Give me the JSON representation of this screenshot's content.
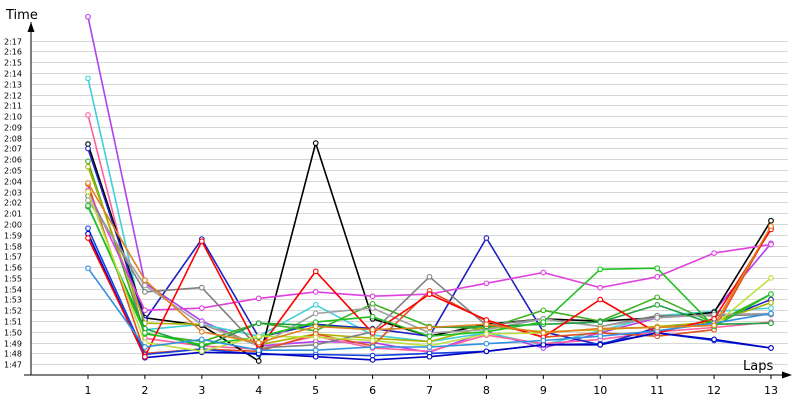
{
  "chart_data": {
    "type": "line",
    "xlabel": "Laps",
    "ylabel": "Time",
    "x": [
      1,
      2,
      3,
      4,
      5,
      6,
      7,
      8,
      9,
      10,
      11,
      12,
      13
    ],
    "ylim": [
      "1:46",
      "2:19"
    ],
    "yticks": [
      "1:47",
      "1:48",
      "1:49",
      "1:50",
      "1:51",
      "1:52",
      "1:53",
      "1:54",
      "1:55",
      "1:56",
      "1:57",
      "1:58",
      "1:59",
      "2:00",
      "2:01",
      "2:02",
      "2:03",
      "2:04",
      "2:05",
      "2:06",
      "2:07",
      "2:08",
      "2:09",
      "2:10",
      "2:11",
      "2:12",
      "2:13",
      "2:14",
      "2:15",
      "2:16",
      "2:17"
    ],
    "grid": true,
    "legend": "none",
    "series": [
      {
        "color": "#b040f0",
        "values": [
          "2:19.2",
          "1:54.5",
          "1:51.0",
          "1:48.7",
          "1:49.1",
          "1:49.0",
          "1:48.1",
          "1:50.0",
          "1:48.5",
          "1:49.9",
          "1:51.3",
          "1:51.9",
          "1:58.2"
        ]
      },
      {
        "color": "#40d0d8",
        "values": [
          "2:13.5",
          "1:50.2",
          "1:50.7",
          "1:49.6",
          "1:52.5",
          "1:49.7",
          "1:49.1",
          "1:49.9",
          "1:48.8",
          "1:50.1",
          "1:51.5",
          "1:51.9",
          "1:52.2"
        ]
      },
      {
        "color": "#ff60a0",
        "values": [
          "2:10.1",
          "1:49.4",
          "1:48.7",
          "1:48.4",
          "1:49.6",
          "1:48.5",
          "1:48.2",
          "1:49.7",
          "1:48.9",
          "1:49.3",
          "1:50.0",
          "1:50.4",
          "1:50.9"
        ]
      },
      {
        "color": "#000000",
        "values": [
          "2:07.4",
          "1:51.3",
          "1:50.6",
          "1:47.3",
          "2:07.5",
          "1:51.2",
          "1:49.6",
          "1:50.7",
          "1:51.2",
          "1:51.0",
          "1:51.3",
          "1:51.8",
          "2:00.3"
        ]
      },
      {
        "color": "#2020c0",
        "values": [
          "2:07.0",
          "1:51.1",
          "1:58.6",
          "1:49.5",
          "1:50.7",
          "1:50.3",
          "1:49.6",
          "1:58.7",
          "1:50.0",
          "1:48.8",
          "1:50.4",
          "1:50.9",
          "1:53.0"
        ]
      },
      {
        "color": "#40b020",
        "values": [
          "2:05.8",
          "1:49.8",
          "1:49.1",
          "1:50.8",
          "1:50.1",
          "1:52.6",
          "1:50.5",
          "1:50.3",
          "1:52.0",
          "1:51.0",
          "1:53.2",
          "1:50.8",
          "1:53.5"
        ]
      },
      {
        "color": "#b0b000",
        "values": [
          "2:05.3",
          "1:50.8",
          "1:50.7",
          "1:48.8",
          "1:49.8",
          "1:49.4",
          "1:49.1",
          "1:50.5",
          "1:50.0",
          "1:50.2",
          "1:50.5",
          "1:50.9",
          "1:52.7"
        ]
      },
      {
        "color": "#e05020",
        "values": [
          "2:03.7",
          "1:48.0",
          "1:48.4",
          "1:48.2",
          "1:49.8",
          "1:48.7",
          "1:53.8",
          "1:51.0",
          "1:49.5",
          "1:49.9",
          "1:49.6",
          "1:50.2",
          "1:59.7"
        ]
      },
      {
        "color": "#e040e0",
        "values": [
          "2:03.1",
          "1:52.0",
          "1:52.2",
          "1:53.1",
          "1:53.7",
          "1:53.3",
          "1:53.5",
          "1:54.5",
          "1:55.5",
          "1:54.1",
          "1:55.1",
          "1:57.3",
          "1:58.1"
        ]
      },
      {
        "color": "#808080",
        "values": [
          "2:02.6",
          "1:53.7",
          "1:54.1",
          "1:48.5",
          "1:48.8",
          "1:50.0",
          "1:55.1",
          "1:50.6",
          "1:51.2",
          "1:50.5",
          "1:51.5",
          "1:51.5",
          "1:51.6"
        ]
      },
      {
        "color": "#a0a0a0",
        "values": [
          "2:02.2",
          "1:54.3",
          "1:50.7",
          "1:48.7",
          "1:51.7",
          "1:52.2",
          "1:49.9",
          "1:50.2",
          "1:51.2",
          "1:50.5",
          "1:51.3",
          "1:51.6",
          "1:51.7"
        ]
      },
      {
        "color": "#20a040",
        "values": [
          "2:01.6",
          "1:50.3",
          "1:48.6",
          "1:50.8",
          "1:50.6",
          "1:50.2",
          "1:50.4",
          "1:50.5",
          "1:50.7",
          "1:50.9",
          "1:52.5",
          "1:50.7",
          "1:50.8"
        ]
      },
      {
        "color": "#1040e0",
        "values": [
          "1:59.6",
          "1:47.9",
          "1:48.4",
          "1:47.9",
          "1:47.9",
          "1:47.8",
          "1:48.0",
          "1:48.2",
          "1:48.8",
          "1:48.9",
          "1:49.9",
          "1:49.2",
          "1:48.5"
        ]
      },
      {
        "color": "#0000c0",
        "values": [
          "1:59.1",
          "1:47.6",
          "1:48.1",
          "1:48.0",
          "1:47.7",
          "1:47.4",
          "1:47.7",
          "1:48.2",
          "1:48.8",
          "1:48.8",
          "1:49.9",
          "1:49.3",
          "1:48.5"
        ]
      },
      {
        "color": "#ff0000",
        "values": [
          "1:58.7",
          "1:47.7",
          "1:58.4",
          "1:48.4",
          "1:55.6",
          "1:49.9",
          "1:53.5",
          "1:51.1",
          "1:49.5",
          "1:53.0",
          "1:49.9",
          "1:51.2",
          "1:59.5"
        ]
      },
      {
        "color": "#20c020",
        "values": [
          "2:01.7",
          "1:49.9",
          "1:48.8",
          "1:49.5",
          "1:50.9",
          "1:51.4",
          "1:49.6",
          "1:50.0",
          "1:50.9",
          "1:55.8",
          "1:55.9",
          "1:50.5",
          "1:53.5"
        ]
      },
      {
        "color": "#c0e040",
        "values": [
          "2:03.0",
          "1:49.0",
          "1:48.2",
          "1:49.6",
          "1:49.5",
          "1:49.2",
          "1:48.7",
          "1:49.8",
          "1:49.9",
          "1:50.3",
          "1:50.4",
          "1:50.6",
          "1:55.0"
        ]
      },
      {
        "color": "#3090e0",
        "values": [
          "1:55.9",
          "1:48.6",
          "1:49.3",
          "1:48.3",
          "1:48.3",
          "1:48.6",
          "1:48.6",
          "1:48.9",
          "1:49.2",
          "1:49.6",
          "1:50.1",
          "1:50.8",
          "1:51.7"
        ]
      },
      {
        "color": "#e08020",
        "values": [
          "2:03.8",
          "1:54.8",
          "1:50.0",
          "1:49.0",
          "1:50.5",
          "1:50.2",
          "1:50.4",
          "1:50.7",
          "1:49.9",
          "1:50.3",
          "1:50.4",
          "1:50.6",
          "1:59.8"
        ]
      }
    ]
  }
}
